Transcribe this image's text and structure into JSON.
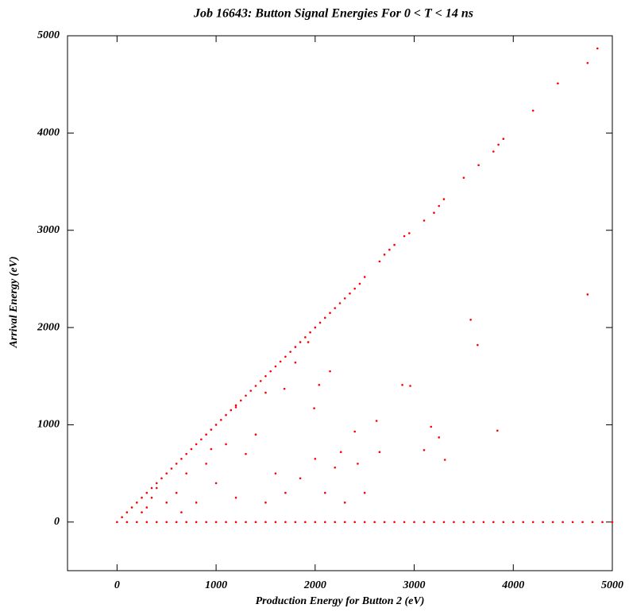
{
  "chart_data": {
    "type": "scatter",
    "title": "Job 16643: Button Signal Energies For 0 < T < 14 ns",
    "x_label": "Production Energy for Button 2 (eV)",
    "y_label": "Arrival Energy (eV)",
    "color": "#ff0000",
    "xlim": [
      -500,
      5000
    ],
    "ylim": [
      -500,
      5000
    ],
    "xticks": [
      0,
      1000,
      2000,
      3000,
      4000,
      5000
    ],
    "yticks": [
      0,
      1000,
      2000,
      3000,
      4000,
      5000
    ],
    "grid": false,
    "x": [
      0,
      50,
      100,
      150,
      200,
      250,
      300,
      350,
      400,
      450,
      500,
      550,
      600,
      650,
      700,
      750,
      800,
      850,
      900,
      950,
      1000,
      1050,
      1100,
      1150,
      1200,
      1250,
      1300,
      1350,
      1400,
      1450,
      1500,
      1550,
      1600,
      1650,
      1700,
      1750,
      1800,
      1850,
      1900,
      1950,
      2000,
      2050,
      2100,
      2150,
      2200,
      2250,
      2300,
      2350,
      2400,
      2450,
      2500,
      2650,
      2700,
      2750,
      2800,
      2900,
      2950,
      3100,
      3200,
      3250,
      3300,
      3500,
      3650,
      3800,
      3850,
      3900,
      4200,
      4450,
      4750,
      4850,
      100,
      200,
      300,
      400,
      500,
      600,
      700,
      800,
      900,
      1000,
      1100,
      1200,
      1300,
      1400,
      1500,
      1600,
      1700,
      1800,
      1900,
      2000,
      2100,
      2200,
      2300,
      2400,
      2500,
      2600,
      2700,
      2800,
      2900,
      3000,
      3100,
      3200,
      3300,
      3400,
      3500,
      3600,
      3700,
      3800,
      3900,
      4000,
      4100,
      4200,
      4300,
      4400,
      4500,
      4600,
      4700,
      4800,
      4900,
      5000,
      4750,
      3570,
      3640,
      2150,
      2040,
      2880,
      2960,
      3840,
      3250,
      3170,
      3100,
      3310,
      2620,
      2400,
      2260,
      2200,
      2430,
      1990,
      1930,
      1800,
      1690,
      1500,
      1200,
      1400,
      1100,
      900,
      700,
      600,
      500,
      400,
      300,
      800,
      1000,
      1300,
      1600,
      1700,
      1500,
      2000,
      1200,
      950,
      650,
      350,
      250,
      1850,
      2100,
      2500,
      2650,
      2300
    ],
    "values": [
      0,
      50,
      100,
      150,
      200,
      250,
      300,
      350,
      400,
      450,
      500,
      550,
      600,
      650,
      700,
      750,
      800,
      850,
      900,
      950,
      1000,
      1050,
      1100,
      1150,
      1200,
      1250,
      1300,
      1350,
      1400,
      1450,
      1500,
      1550,
      1600,
      1650,
      1700,
      1750,
      1800,
      1850,
      1900,
      1950,
      2000,
      2050,
      2100,
      2150,
      2200,
      2250,
      2300,
      2350,
      2400,
      2450,
      2520,
      2680,
      2750,
      2800,
      2850,
      2940,
      2970,
      3100,
      3180,
      3250,
      3320,
      3540,
      3670,
      3810,
      3880,
      3940,
      4230,
      4510,
      4720,
      4870,
      0,
      0,
      0,
      0,
      0,
      0,
      0,
      0,
      0,
      0,
      0,
      0,
      0,
      0,
      0,
      0,
      0,
      0,
      0,
      0,
      0,
      0,
      0,
      0,
      0,
      0,
      0,
      0,
      0,
      0,
      0,
      0,
      0,
      0,
      0,
      0,
      0,
      0,
      0,
      0,
      0,
      0,
      0,
      0,
      0,
      0,
      0,
      0,
      0,
      0,
      2340,
      2080,
      1820,
      1550,
      1410,
      1410,
      1400,
      940,
      870,
      980,
      740,
      640,
      1040,
      930,
      720,
      560,
      600,
      1170,
      1850,
      1640,
      1370,
      1330,
      1180,
      900,
      800,
      600,
      500,
      300,
      200,
      350,
      150,
      200,
      400,
      700,
      500,
      300,
      200,
      650,
      250,
      750,
      100,
      250,
      100,
      450,
      300,
      300,
      720,
      200
    ]
  }
}
